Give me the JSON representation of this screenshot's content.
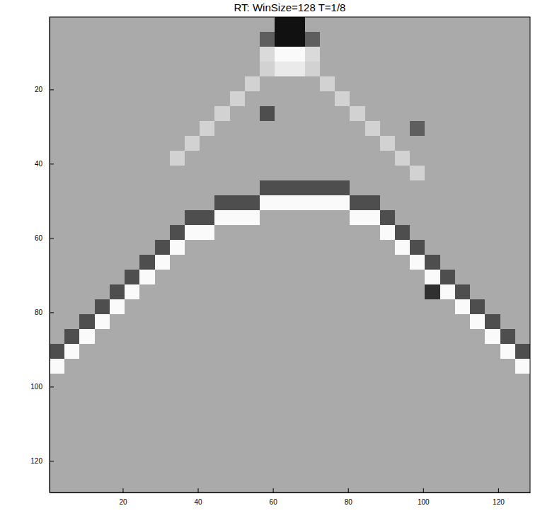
{
  "chart_data": {
    "type": "heatmap",
    "title": "RT: WinSize=128 T=1/8",
    "xlim": [
      0.5,
      128.5
    ],
    "ylim": [
      0.5,
      128.5
    ],
    "xticks": [
      20,
      40,
      60,
      80,
      100,
      120
    ],
    "yticks": [
      20,
      40,
      60,
      80,
      100,
      120
    ],
    "zlim": [
      -1,
      1
    ],
    "x": [
      2.5,
      6.5,
      10.5,
      14.5,
      18.5,
      22.5,
      26.5,
      30.5,
      34.5,
      38.5,
      42.5,
      46.5,
      50.5,
      54.5,
      58.5,
      62.5,
      66.5,
      70.5,
      74.5,
      78.5,
      82.5,
      86.5,
      90.5,
      94.5,
      98.5,
      102.5,
      106.5,
      110.5,
      114.5,
      118.5,
      122.5,
      126.5
    ],
    "y": [
      2.5,
      6.5,
      10.5,
      14.5,
      18.5,
      22.5,
      26.5,
      30.5,
      34.5,
      38.5,
      42.5,
      46.5,
      50.5,
      54.5,
      58.5,
      62.5,
      66.5,
      70.5,
      74.5,
      78.5,
      82.5,
      86.5,
      90.5,
      94.5,
      98.5,
      102.5,
      106.5,
      110.5,
      114.5,
      118.5,
      122.5,
      126.5
    ],
    "cells": [
      [
        0,
        0,
        0,
        0,
        0,
        0,
        0,
        0,
        0,
        0,
        0,
        0,
        0,
        0,
        0,
        -1,
        -1,
        0,
        0,
        0,
        0,
        0,
        0,
        0,
        0,
        0,
        0,
        0,
        0,
        0,
        0,
        0
      ],
      [
        0,
        0,
        0,
        0,
        0,
        0,
        0,
        0,
        0,
        0,
        0,
        0,
        0,
        0,
        -0.5,
        -1,
        -1,
        -0.5,
        0,
        0,
        0,
        0,
        0,
        0,
        0,
        0,
        0,
        0,
        0,
        0,
        0,
        0
      ],
      [
        0,
        0,
        0,
        0,
        0,
        0,
        0,
        0,
        0,
        0,
        0,
        0,
        0,
        0,
        0.6,
        1,
        1,
        0.6,
        0,
        0,
        0,
        0,
        0,
        0,
        0,
        0,
        0,
        0,
        0,
        0,
        0,
        0
      ],
      [
        0,
        0,
        0,
        0,
        0,
        0,
        0,
        0,
        0,
        0,
        0,
        0,
        0,
        0,
        0.5,
        0.8,
        0.8,
        0.5,
        0,
        0,
        0,
        0,
        0,
        0,
        0,
        0,
        0,
        0,
        0,
        0,
        0,
        0
      ],
      [
        0,
        0,
        0,
        0,
        0,
        0,
        0,
        0,
        0,
        0,
        0,
        0,
        0,
        0.5,
        0,
        0,
        0,
        0,
        0.5,
        0,
        0,
        0,
        0,
        0,
        0,
        0,
        0,
        0,
        0,
        0,
        0,
        0
      ],
      [
        0,
        0,
        0,
        0,
        0,
        0,
        0,
        0,
        0,
        0,
        0,
        0,
        0.5,
        0,
        0,
        0,
        0,
        0,
        0,
        0.5,
        0,
        0,
        0,
        0,
        0,
        0,
        0,
        0,
        0,
        0,
        0,
        0
      ],
      [
        0,
        0,
        0,
        0,
        0,
        0,
        0,
        0,
        0,
        0,
        0,
        0.5,
        0,
        0,
        -0.6,
        0,
        0,
        0,
        0,
        0,
        0.5,
        0,
        0,
        0,
        0,
        0,
        0,
        0,
        0,
        0,
        0,
        0
      ],
      [
        0,
        0,
        0,
        0,
        0,
        0,
        0,
        0,
        0,
        0,
        0.5,
        0,
        0,
        0,
        0,
        0,
        0,
        0,
        0,
        0,
        0,
        0.5,
        0,
        0,
        -0.5,
        0,
        0,
        0,
        0,
        0,
        0,
        0
      ],
      [
        0,
        0,
        0,
        0,
        0,
        0,
        0,
        0,
        0,
        0.5,
        0,
        0,
        0,
        0,
        0,
        0,
        0,
        0,
        0,
        0,
        0,
        0,
        0.5,
        0,
        0,
        0,
        0,
        0,
        0,
        0,
        0,
        0
      ],
      [
        0,
        0,
        0,
        0,
        0,
        0,
        0,
        0,
        0.5,
        0,
        0,
        0,
        0,
        0,
        0,
        0,
        0,
        0,
        0,
        0,
        0,
        0,
        0,
        0.5,
        0,
        0,
        0,
        0,
        0,
        0,
        0,
        0
      ],
      [
        0,
        0,
        0,
        0,
        0,
        0,
        0,
        0,
        0,
        0,
        0,
        0,
        0,
        0,
        0,
        0,
        0,
        0,
        0,
        0,
        0,
        0,
        0,
        0,
        0.5,
        0,
        0,
        0,
        0,
        0,
        0,
        0
      ],
      [
        0,
        0,
        0,
        0,
        0,
        0,
        0,
        0,
        0,
        0,
        0,
        0,
        0,
        0,
        -0.6,
        -0.6,
        -0.6,
        -0.6,
        -0.6,
        -0.6,
        0,
        0,
        0,
        0,
        0,
        0,
        0,
        0,
        0,
        0,
        0,
        0
      ],
      [
        0,
        0,
        0,
        0,
        0,
        0,
        0,
        0,
        0,
        0,
        0,
        -0.6,
        -0.6,
        -0.6,
        1,
        1,
        1,
        1,
        1,
        1,
        -0.6,
        -0.6,
        0,
        0,
        0,
        0,
        0,
        0,
        0,
        0,
        0,
        0
      ],
      [
        0,
        0,
        0,
        0,
        0,
        0,
        0,
        0,
        0,
        -0.6,
        -0.6,
        1,
        1,
        1,
        0,
        0,
        0,
        0,
        0,
        0,
        1,
        1,
        -0.6,
        0,
        0,
        0,
        0,
        0,
        0,
        0,
        0,
        0
      ],
      [
        0,
        0,
        0,
        0,
        0,
        0,
        0,
        0,
        -0.6,
        1,
        1,
        0,
        0,
        0,
        0,
        0,
        0,
        0,
        0,
        0,
        0,
        0,
        1,
        -0.6,
        0,
        0,
        0,
        0,
        0,
        0,
        0,
        0
      ],
      [
        0,
        0,
        0,
        0,
        0,
        0,
        0,
        -0.6,
        1,
        0,
        0,
        0,
        0,
        0,
        0,
        0,
        0,
        0,
        0,
        0,
        0,
        0,
        0,
        1,
        -0.6,
        0,
        0,
        0,
        0,
        0,
        0,
        0
      ],
      [
        0,
        0,
        0,
        0,
        0,
        0,
        -0.6,
        1,
        0,
        0,
        0,
        0,
        0,
        0,
        0,
        0,
        0,
        0,
        0,
        0,
        0,
        0,
        0,
        0,
        1,
        -0.6,
        0,
        0,
        0,
        0,
        0,
        0
      ],
      [
        0,
        0,
        0,
        0,
        0,
        -0.6,
        1,
        0,
        0,
        0,
        0,
        0,
        0,
        0,
        0,
        0,
        0,
        0,
        0,
        0,
        0,
        0,
        0,
        0,
        0,
        1,
        -0.6,
        0,
        0,
        0,
        0,
        0
      ],
      [
        0,
        0,
        0,
        0,
        -0.6,
        1,
        0,
        0,
        0,
        0,
        0,
        0,
        0,
        0,
        0,
        0,
        0,
        0,
        0,
        0,
        0,
        0,
        0,
        0,
        0,
        -0.8,
        1,
        -0.6,
        0,
        0,
        0,
        0
      ],
      [
        0,
        0,
        0,
        -0.6,
        1,
        0,
        0,
        0,
        0,
        0,
        0,
        0,
        0,
        0,
        0,
        0,
        0,
        0,
        0,
        0,
        0,
        0,
        0,
        0,
        0,
        0,
        0,
        1,
        -0.6,
        0,
        0,
        0
      ],
      [
        0,
        0,
        -0.6,
        1,
        0,
        0,
        0,
        0,
        0,
        0,
        0,
        0,
        0,
        0,
        0,
        0,
        0,
        0,
        0,
        0,
        0,
        0,
        0,
        0,
        0,
        0,
        0,
        0,
        1,
        -0.6,
        0,
        0
      ],
      [
        0,
        -0.6,
        1,
        0,
        0,
        0,
        0,
        0,
        0,
        0,
        0,
        0,
        0,
        0,
        0,
        0,
        0,
        0,
        0,
        0,
        0,
        0,
        0,
        0,
        0,
        0,
        0,
        0,
        0,
        1,
        -0.6,
        0
      ],
      [
        -0.6,
        1,
        0,
        0,
        0,
        0,
        0,
        0,
        0,
        0,
        0,
        0,
        0,
        0,
        0,
        0,
        0,
        0,
        0,
        0,
        0,
        0,
        0,
        0,
        0,
        0,
        0,
        0,
        0,
        0,
        1,
        -0.6
      ],
      [
        1,
        0,
        0,
        0,
        0,
        0,
        0,
        0,
        0,
        0,
        0,
        0,
        0,
        0,
        0,
        0,
        0,
        0,
        0,
        0,
        0,
        0,
        0,
        0,
        0,
        0,
        0,
        0,
        0,
        0,
        0,
        1
      ],
      [
        0,
        0,
        0,
        0,
        0,
        0,
        0,
        0,
        0,
        0,
        0,
        0,
        0,
        0,
        0,
        0,
        0,
        0,
        0,
        0,
        0,
        0,
        0,
        0,
        0,
        0,
        0,
        0,
        0,
        0,
        0,
        0
      ],
      [
        0,
        0,
        0,
        0,
        0,
        0,
        0,
        0,
        0,
        0,
        0,
        0,
        0,
        0,
        0,
        0,
        0,
        0,
        0,
        0,
        0,
        0,
        0,
        0,
        0,
        0,
        0,
        0,
        0,
        0,
        0,
        0
      ],
      [
        0,
        0,
        0,
        0,
        0,
        0,
        0,
        0,
        0,
        0,
        0,
        0,
        0,
        0,
        0,
        0,
        0,
        0,
        0,
        0,
        0,
        0,
        0,
        0,
        0,
        0,
        0,
        0,
        0,
        0,
        0,
        0
      ],
      [
        0,
        0,
        0,
        0,
        0,
        0,
        0,
        0,
        0,
        0,
        0,
        0,
        0,
        0,
        0,
        0,
        0,
        0,
        0,
        0,
        0,
        0,
        0,
        0,
        0,
        0,
        0,
        0,
        0,
        0,
        0,
        0
      ],
      [
        0,
        0,
        0,
        0,
        0,
        0,
        0,
        0,
        0,
        0,
        0,
        0,
        0,
        0,
        0,
        0,
        0,
        0,
        0,
        0,
        0,
        0,
        0,
        0,
        0,
        0,
        0,
        0,
        0,
        0,
        0,
        0
      ],
      [
        0,
        0,
        0,
        0,
        0,
        0,
        0,
        0,
        0,
        0,
        0,
        0,
        0,
        0,
        0,
        0,
        0,
        0,
        0,
        0,
        0,
        0,
        0,
        0,
        0,
        0,
        0,
        0,
        0,
        0,
        0,
        0
      ],
      [
        0,
        0,
        0,
        0,
        0,
        0,
        0,
        0,
        0,
        0,
        0,
        0,
        0,
        0,
        0,
        0,
        0,
        0,
        0,
        0,
        0,
        0,
        0,
        0,
        0,
        0,
        0,
        0,
        0,
        0,
        0,
        0
      ],
      [
        0,
        0,
        0,
        0,
        0,
        0,
        0,
        0,
        0,
        0,
        0,
        0,
        0,
        0,
        0,
        0,
        0,
        0,
        0,
        0,
        0,
        0,
        0,
        0,
        0,
        0,
        0,
        0,
        0,
        0,
        0,
        0
      ]
    ]
  }
}
